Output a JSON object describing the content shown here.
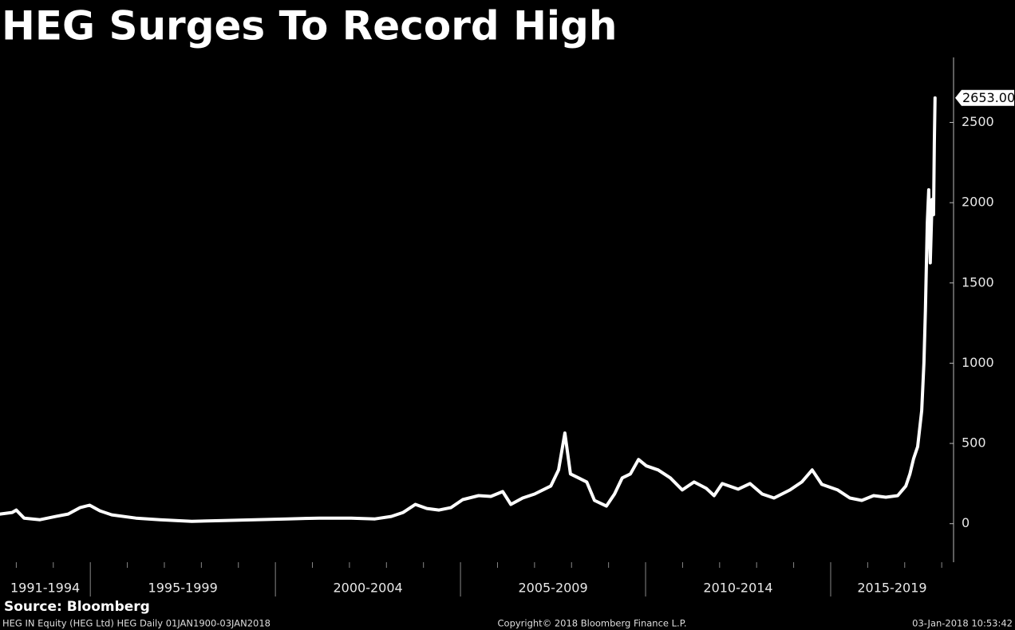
{
  "chart_data": {
    "type": "line",
    "title": "HEG Surges To Record High",
    "x": [
      1992.56,
      1992.89,
      1993.0,
      1993.21,
      1993.64,
      1994.07,
      1994.4,
      1994.72,
      1994.98,
      1995.26,
      1995.58,
      1996.23,
      1996.88,
      1997.74,
      1998.6,
      1999.46,
      2000.32,
      2001.19,
      2002.05,
      2002.69,
      2003.13,
      2003.45,
      2003.78,
      2004.09,
      2004.42,
      2004.74,
      2005.06,
      2005.49,
      2005.82,
      2006.14,
      2006.36,
      2006.68,
      2007.0,
      2007.44,
      2007.65,
      2007.82,
      2007.97,
      2008.19,
      2008.41,
      2008.62,
      2008.94,
      2009.16,
      2009.37,
      2009.59,
      2009.81,
      2010.02,
      2010.34,
      2010.67,
      2010.99,
      2011.31,
      2011.64,
      2011.85,
      2012.07,
      2012.5,
      2012.82,
      2013.15,
      2013.47,
      2013.9,
      2014.22,
      2014.5,
      2014.76,
      2015.19,
      2015.52,
      2015.84,
      2016.16,
      2016.49,
      2016.81,
      2017.03,
      2017.14,
      2017.24,
      2017.35,
      2017.46,
      2017.52,
      2017.56,
      2017.61,
      2017.65,
      2017.69,
      2017.74,
      2017.78,
      2017.8,
      2017.82
    ],
    "values": [
      60,
      70,
      85,
      35,
      25,
      45,
      60,
      100,
      115,
      80,
      55,
      35,
      25,
      15,
      20,
      25,
      30,
      35,
      35,
      30,
      45,
      70,
      120,
      95,
      85,
      100,
      150,
      175,
      170,
      200,
      120,
      160,
      185,
      235,
      335,
      565,
      310,
      285,
      260,
      145,
      110,
      185,
      285,
      310,
      400,
      360,
      335,
      285,
      210,
      260,
      220,
      175,
      250,
      215,
      250,
      185,
      160,
      210,
      260,
      335,
      245,
      210,
      160,
      145,
      175,
      165,
      175,
      235,
      310,
      405,
      480,
      705,
      1005,
      1325,
      1875,
      2080,
      1625,
      2020,
      1925,
      2370,
      2653
    ],
    "last_label": "2653.00",
    "color": "#ffffff",
    "xlim": [
      1992.56,
      2018.32
    ],
    "ylim": [
      -240,
      2905
    ],
    "yticks": [
      0,
      500,
      1000,
      1500,
      2000,
      2500
    ],
    "x_periods": [
      {
        "label": "1991-1994",
        "start": 1991,
        "end": 1995
      },
      {
        "label": "1995-1999",
        "start": 1995,
        "end": 2000
      },
      {
        "label": "2000-2004",
        "start": 2000,
        "end": 2005
      },
      {
        "label": "2005-2009",
        "start": 2005,
        "end": 2010
      },
      {
        "label": "2010-2014",
        "start": 2010,
        "end": 2015
      },
      {
        "label": "2015-2019",
        "start": 2015,
        "end": 2020
      }
    ],
    "xminorticks": [
      1993,
      1994,
      1996,
      1997,
      1998,
      1999,
      2001,
      2002,
      2003,
      2004,
      2006,
      2007,
      2008,
      2009,
      2011,
      2012,
      2013,
      2014,
      2016,
      2017,
      2018
    ]
  },
  "footer": {
    "source": "Source: Bloomberg",
    "ticker": "HEG IN Equity (HEG Ltd) HEG  Daily 01JAN1900-03JAN2018",
    "copyright": "Copyright© 2018 Bloomberg Finance L.P.",
    "timestamp": "03-Jan-2018 10:53:42"
  }
}
